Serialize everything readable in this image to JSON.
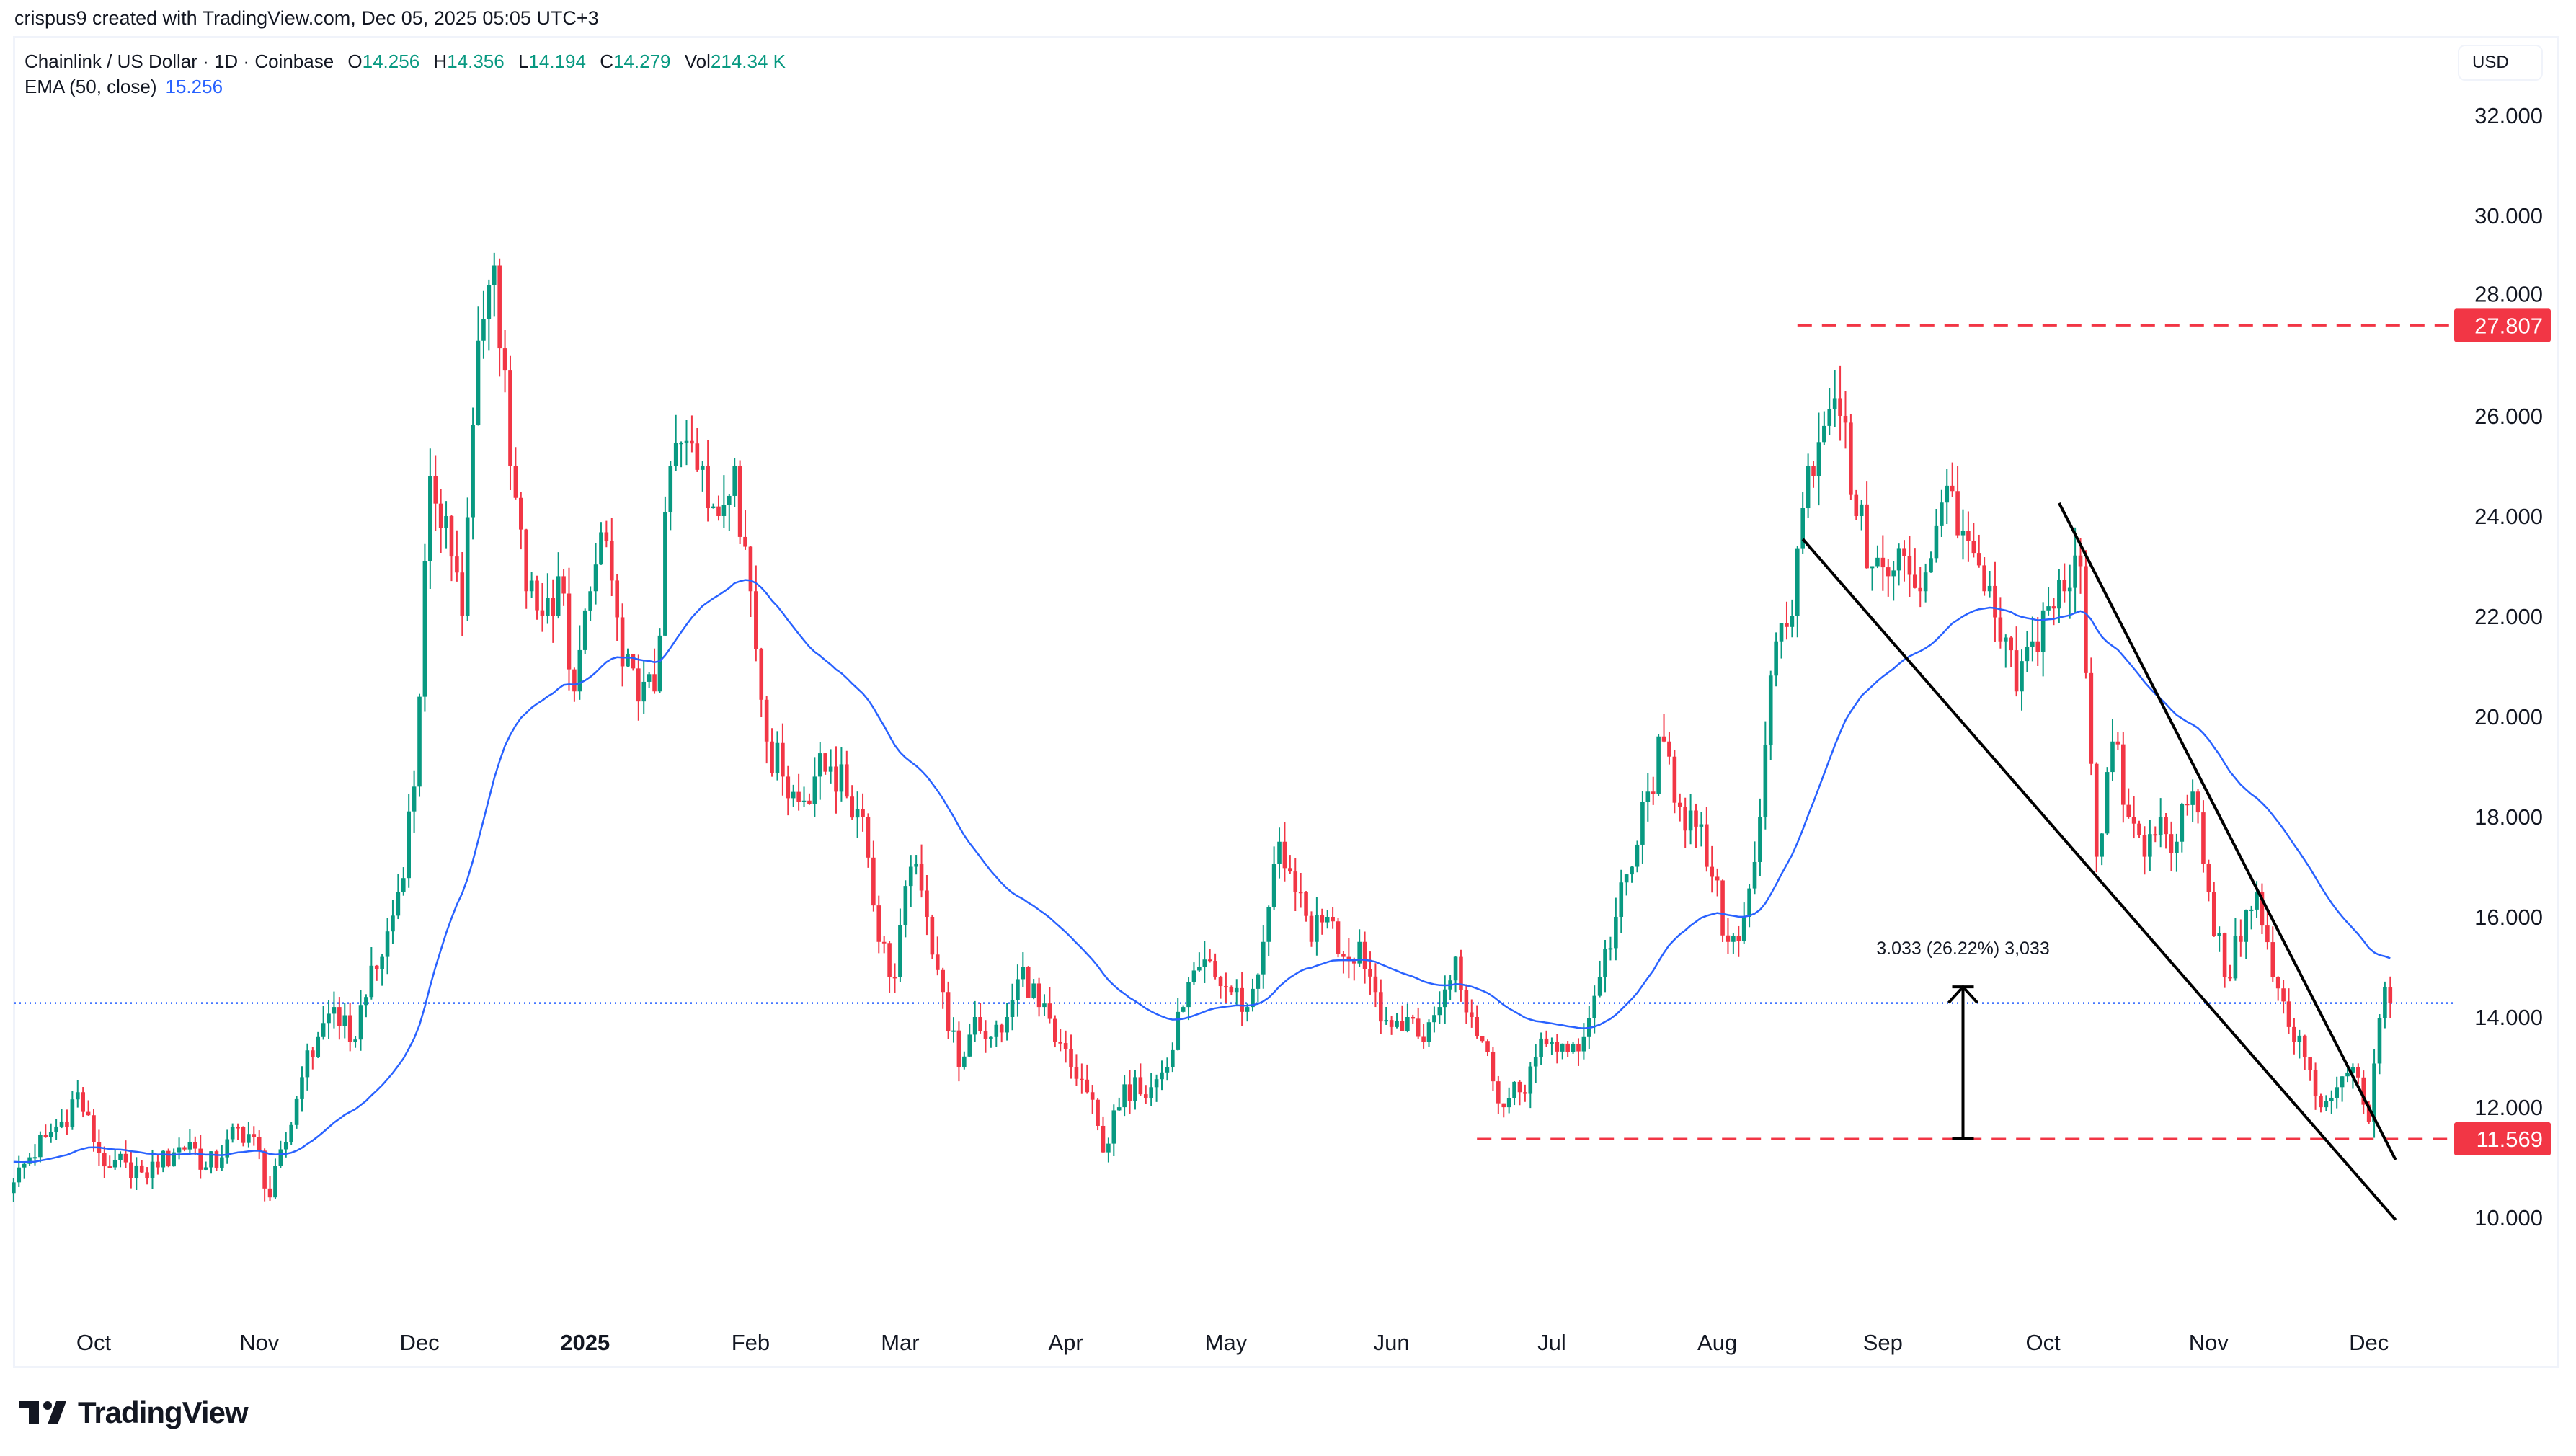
{
  "credit": "crispus9 created with TradingView.com, Dec 05, 2025 05:05 UTC+3",
  "legend": {
    "symbol": "Chainlink / US Dollar · 1D · Coinbase",
    "o_label": "O",
    "o": "14.256",
    "h_label": "H",
    "h": "14.356",
    "l_label": "L",
    "l": "14.194",
    "c_label": "C",
    "c": "14.279",
    "vol_label": "Vol",
    "vol": "214.34 K",
    "ema_label": "EMA (50, close)",
    "ema": "15.256"
  },
  "currency_button": "USD",
  "logo": "TradingView",
  "colors": {
    "up": "#089981",
    "down": "#F23645",
    "ema": "#2962FF",
    "level": "#F23645",
    "price_line": "#2962FF",
    "trend": "#000000"
  },
  "chart_data": {
    "type": "candlestick",
    "title": "Chainlink / US Dollar · 1D · Coinbase",
    "ylim": [
      8.6,
      33.3
    ],
    "y_ticks": [
      "10.000",
      "12.000",
      "14.000",
      "16.000",
      "18.000",
      "20.000",
      "22.000",
      "24.000",
      "26.000",
      "28.000",
      "30.000",
      "32.000"
    ],
    "x_ticks": [
      {
        "label": "Oct",
        "date": "2024-10-01",
        "bold": false
      },
      {
        "label": "Nov",
        "date": "2024-11-01",
        "bold": false
      },
      {
        "label": "Dec",
        "date": "2024-12-01",
        "bold": false
      },
      {
        "label": "2025",
        "date": "2025-01-01",
        "bold": true
      },
      {
        "label": "Feb",
        "date": "2025-02-01",
        "bold": false
      },
      {
        "label": "Mar",
        "date": "2025-03-01",
        "bold": false
      },
      {
        "label": "Apr",
        "date": "2025-04-01",
        "bold": false
      },
      {
        "label": "May",
        "date": "2025-05-01",
        "bold": false
      },
      {
        "label": "Jun",
        "date": "2025-06-01",
        "bold": false
      },
      {
        "label": "Jul",
        "date": "2025-07-01",
        "bold": false
      },
      {
        "label": "Aug",
        "date": "2025-08-01",
        "bold": false
      },
      {
        "label": "Sep",
        "date": "2025-09-01",
        "bold": false
      },
      {
        "label": "Oct",
        "date": "2025-10-01",
        "bold": false
      },
      {
        "label": "Nov",
        "date": "2025-11-01",
        "bold": false
      },
      {
        "label": "Dec",
        "date": "2025-12-01",
        "bold": false
      }
    ],
    "approx_closes": [
      [
        "2024-09-16",
        10.7
      ],
      [
        "2024-09-19",
        11.2
      ],
      [
        "2024-09-22",
        11.6
      ],
      [
        "2024-09-25",
        11.9
      ],
      [
        "2024-09-28",
        12.5
      ],
      [
        "2024-10-01",
        11.5
      ],
      [
        "2024-10-04",
        11.0
      ],
      [
        "2024-10-07",
        11.1
      ],
      [
        "2024-10-10",
        10.9
      ],
      [
        "2024-10-13",
        11.0
      ],
      [
        "2024-10-16",
        11.3
      ],
      [
        "2024-10-19",
        11.5
      ],
      [
        "2024-10-22",
        11.0
      ],
      [
        "2024-10-25",
        11.2
      ],
      [
        "2024-10-28",
        11.8
      ],
      [
        "2024-10-31",
        11.6
      ],
      [
        "2024-11-03",
        10.4
      ],
      [
        "2024-11-06",
        11.5
      ],
      [
        "2024-11-09",
        12.8
      ],
      [
        "2024-11-12",
        13.6
      ],
      [
        "2024-11-15",
        14.2
      ],
      [
        "2024-11-18",
        13.5
      ],
      [
        "2024-11-21",
        14.4
      ],
      [
        "2024-11-24",
        15.2
      ],
      [
        "2024-11-27",
        16.5
      ],
      [
        "2024-11-30",
        18.6
      ],
      [
        "2024-12-03",
        24.8
      ],
      [
        "2024-12-06",
        24.0
      ],
      [
        "2024-12-09",
        22.0
      ],
      [
        "2024-12-12",
        27.5
      ],
      [
        "2024-12-15",
        29.0
      ],
      [
        "2024-12-18",
        25.0
      ],
      [
        "2024-12-21",
        22.5
      ],
      [
        "2024-12-24",
        22.0
      ],
      [
        "2024-12-27",
        22.8
      ],
      [
        "2024-12-30",
        20.5
      ],
      [
        "2025-01-02",
        22.5
      ],
      [
        "2025-01-05",
        23.5
      ],
      [
        "2025-01-08",
        21.0
      ],
      [
        "2025-01-11",
        20.3
      ],
      [
        "2025-01-14",
        20.5
      ],
      [
        "2025-01-17",
        25.0
      ],
      [
        "2025-01-20",
        25.5
      ],
      [
        "2025-01-23",
        25.0
      ],
      [
        "2025-01-26",
        24.0
      ],
      [
        "2025-01-29",
        25.0
      ],
      [
        "2025-02-01",
        22.5
      ],
      [
        "2025-02-04",
        19.5
      ],
      [
        "2025-02-07",
        18.8
      ],
      [
        "2025-02-10",
        18.3
      ],
      [
        "2025-02-13",
        18.8
      ],
      [
        "2025-02-16",
        19.0
      ],
      [
        "2025-02-19",
        18.4
      ],
      [
        "2025-02-22",
        18.0
      ],
      [
        "2025-02-25",
        15.5
      ],
      [
        "2025-02-28",
        14.8
      ],
      [
        "2025-03-03",
        17.0
      ],
      [
        "2025-03-06",
        16.0
      ],
      [
        "2025-03-09",
        14.5
      ],
      [
        "2025-03-12",
        13.0
      ],
      [
        "2025-03-15",
        14.0
      ],
      [
        "2025-03-18",
        13.6
      ],
      [
        "2025-03-21",
        14.0
      ],
      [
        "2025-03-24",
        15.0
      ],
      [
        "2025-03-27",
        14.2
      ],
      [
        "2025-03-30",
        13.5
      ],
      [
        "2025-04-02",
        13.0
      ],
      [
        "2025-04-05",
        12.5
      ],
      [
        "2025-04-08",
        11.3
      ],
      [
        "2025-04-11",
        12.2
      ],
      [
        "2025-04-14",
        12.8
      ],
      [
        "2025-04-17",
        12.6
      ],
      [
        "2025-04-20",
        13.0
      ],
      [
        "2025-04-23",
        14.2
      ],
      [
        "2025-04-26",
        15.0
      ],
      [
        "2025-04-29",
        14.8
      ],
      [
        "2025-05-02",
        14.5
      ],
      [
        "2025-05-05",
        14.2
      ],
      [
        "2025-05-08",
        15.5
      ],
      [
        "2025-05-11",
        17.5
      ],
      [
        "2025-05-14",
        16.5
      ],
      [
        "2025-05-17",
        15.5
      ],
      [
        "2025-05-20",
        16.0
      ],
      [
        "2025-05-23",
        15.2
      ],
      [
        "2025-05-26",
        15.5
      ],
      [
        "2025-05-29",
        14.5
      ],
      [
        "2025-06-01",
        13.8
      ],
      [
        "2025-06-04",
        14.0
      ],
      [
        "2025-06-07",
        13.5
      ],
      [
        "2025-06-10",
        14.2
      ],
      [
        "2025-06-13",
        15.2
      ],
      [
        "2025-06-16",
        14.0
      ],
      [
        "2025-06-19",
        13.3
      ],
      [
        "2025-06-22",
        12.2
      ],
      [
        "2025-06-25",
        12.5
      ],
      [
        "2025-06-28",
        13.2
      ],
      [
        "2025-07-01",
        13.5
      ],
      [
        "2025-07-04",
        13.3
      ],
      [
        "2025-07-07",
        13.6
      ],
      [
        "2025-07-10",
        14.8
      ],
      [
        "2025-07-13",
        16.0
      ],
      [
        "2025-07-16",
        17.0
      ],
      [
        "2025-07-19",
        18.5
      ],
      [
        "2025-07-22",
        19.5
      ],
      [
        "2025-07-25",
        18.2
      ],
      [
        "2025-07-28",
        17.8
      ],
      [
        "2025-07-31",
        16.8
      ],
      [
        "2025-08-03",
        15.5
      ],
      [
        "2025-08-06",
        16.0
      ],
      [
        "2025-08-09",
        18.0
      ],
      [
        "2025-08-12",
        21.5
      ],
      [
        "2025-08-15",
        22.0
      ],
      [
        "2025-08-18",
        25.0
      ],
      [
        "2025-08-21",
        25.8
      ],
      [
        "2025-08-24",
        26.0
      ],
      [
        "2025-08-27",
        24.0
      ],
      [
        "2025-08-30",
        23.0
      ],
      [
        "2025-09-02",
        22.8
      ],
      [
        "2025-09-05",
        23.2
      ],
      [
        "2025-09-08",
        22.5
      ],
      [
        "2025-09-11",
        23.8
      ],
      [
        "2025-09-14",
        24.5
      ],
      [
        "2025-09-17",
        23.5
      ],
      [
        "2025-09-20",
        22.5
      ],
      [
        "2025-09-23",
        21.5
      ],
      [
        "2025-09-26",
        20.5
      ],
      [
        "2025-09-29",
        21.5
      ],
      [
        "2025-10-02",
        22.2
      ],
      [
        "2025-10-05",
        22.5
      ],
      [
        "2025-10-08",
        23.0
      ],
      [
        "2025-10-11",
        17.2
      ],
      [
        "2025-10-14",
        19.5
      ],
      [
        "2025-10-17",
        18.0
      ],
      [
        "2025-10-20",
        17.2
      ],
      [
        "2025-10-23",
        18.0
      ],
      [
        "2025-10-26",
        17.5
      ],
      [
        "2025-10-29",
        18.5
      ],
      [
        "2025-11-01",
        16.5
      ],
      [
        "2025-11-04",
        14.8
      ],
      [
        "2025-11-07",
        15.5
      ],
      [
        "2025-11-10",
        16.5
      ],
      [
        "2025-11-13",
        14.8
      ],
      [
        "2025-11-16",
        13.8
      ],
      [
        "2025-11-19",
        13.2
      ],
      [
        "2025-11-22",
        12.2
      ],
      [
        "2025-11-25",
        12.6
      ],
      [
        "2025-11-28",
        13.0
      ],
      [
        "2025-12-01",
        11.9
      ],
      [
        "2025-12-04",
        14.6
      ],
      [
        "2025-12-05",
        14.279
      ]
    ],
    "ema_period": 50,
    "last_price": 14.279,
    "levels": [
      {
        "price": 27.807,
        "label": "27.807",
        "from": "2025-08-16"
      },
      {
        "price": 11.569,
        "label": "11.569",
        "from": "2025-06-17"
      }
    ],
    "trendlines": [
      {
        "from": [
          "2025-08-17",
          23.54
        ],
        "to": [
          "2025-12-06",
          9.95
        ]
      },
      {
        "from": [
          "2025-10-04",
          24.26
        ],
        "to": [
          "2025-12-06",
          11.15
        ]
      }
    ],
    "measure": {
      "date": "2025-09-16",
      "from": 11.569,
      "to": 14.602,
      "label": "3.033 (26.22%) 3,033"
    }
  }
}
